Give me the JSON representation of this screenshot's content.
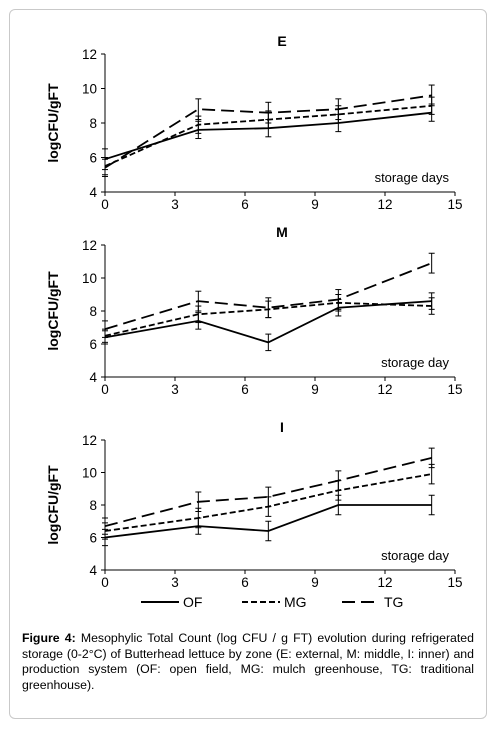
{
  "chart_data": [
    {
      "type": "line",
      "title": "E",
      "xlabel": "",
      "ylabel": "logCFU/gFT",
      "annotation": "storage days",
      "xlim": [
        0,
        15
      ],
      "ylim": [
        4,
        12
      ],
      "xticks": [
        0,
        3,
        6,
        9,
        12,
        15
      ],
      "yticks": [
        4,
        6,
        8,
        10,
        12
      ],
      "x": [
        0,
        4,
        7,
        10,
        14
      ],
      "grid": false,
      "series": [
        {
          "name": "OF",
          "values": [
            5.9,
            7.6,
            7.7,
            8.0,
            8.6
          ],
          "errors": [
            0.6,
            0.5,
            0.5,
            0.5,
            0.5
          ]
        },
        {
          "name": "MG",
          "values": [
            5.5,
            7.9,
            8.2,
            8.5,
            9.0
          ],
          "errors": [
            0.5,
            0.5,
            0.5,
            0.5,
            0.5
          ]
        },
        {
          "name": "TG",
          "values": [
            5.4,
            8.8,
            8.6,
            8.8,
            9.6
          ],
          "errors": [
            0.5,
            0.6,
            0.6,
            0.6,
            0.6
          ]
        }
      ]
    },
    {
      "type": "line",
      "title": "M",
      "xlabel": "",
      "ylabel": "logCFU/gFT",
      "annotation": "storage day",
      "xlim": [
        0,
        15
      ],
      "ylim": [
        4,
        12
      ],
      "xticks": [
        0,
        3,
        6,
        9,
        12,
        15
      ],
      "yticks": [
        4,
        6,
        8,
        10,
        12
      ],
      "x": [
        0,
        4,
        7,
        10,
        14
      ],
      "grid": false,
      "series": [
        {
          "name": "OF",
          "values": [
            6.4,
            7.4,
            6.1,
            8.2,
            8.6
          ],
          "errors": [
            0.4,
            0.5,
            0.5,
            0.5,
            0.5
          ]
        },
        {
          "name": "MG",
          "values": [
            6.5,
            7.8,
            8.1,
            8.5,
            8.3
          ],
          "errors": [
            0.4,
            0.5,
            0.5,
            0.5,
            0.5
          ]
        },
        {
          "name": "TG",
          "values": [
            6.9,
            8.6,
            8.2,
            8.7,
            10.9
          ],
          "errors": [
            0.5,
            0.6,
            0.6,
            0.6,
            0.6
          ]
        }
      ]
    },
    {
      "type": "line",
      "title": "I",
      "xlabel": "",
      "ylabel": "logCFU/gFT",
      "annotation": "storage day",
      "xlim": [
        0,
        15
      ],
      "ylim": [
        4,
        12
      ],
      "xticks": [
        0,
        3,
        6,
        9,
        12,
        15
      ],
      "yticks": [
        4,
        6,
        8,
        10,
        12
      ],
      "x": [
        0,
        4,
        7,
        10,
        14
      ],
      "grid": false,
      "series": [
        {
          "name": "OF",
          "values": [
            6.0,
            6.7,
            6.4,
            8.0,
            8.0
          ],
          "errors": [
            0.5,
            0.5,
            0.6,
            0.6,
            0.6
          ]
        },
        {
          "name": "MG",
          "values": [
            6.4,
            7.2,
            7.9,
            8.9,
            9.9
          ],
          "errors": [
            0.5,
            0.6,
            0.6,
            0.6,
            0.6
          ]
        },
        {
          "name": "TG",
          "values": [
            6.7,
            8.2,
            8.5,
            9.5,
            10.9
          ],
          "errors": [
            0.5,
            0.6,
            0.6,
            0.6,
            0.6
          ]
        }
      ]
    }
  ],
  "legend": {
    "placement": "bottom",
    "items": [
      {
        "label": "OF",
        "style": "solid"
      },
      {
        "label": "MG",
        "style": "short-dash"
      },
      {
        "label": "TG",
        "style": "long-dash"
      }
    ]
  },
  "caption": {
    "label": "Figure 4:",
    "text": "Mesophylic Total Count (log CFU / g FT) evolution during refrigerated storage (0-2°C) of Butterhead lettuce by zone (E: external, M: middle, I: inner) and production system (OF: open field, MG: mulch greenhouse, TG: traditional greenhouse)."
  },
  "colors": {
    "line": "#000000",
    "border": "#c9c9c9",
    "background": "#ffffff"
  }
}
